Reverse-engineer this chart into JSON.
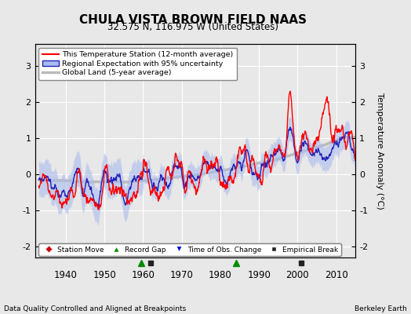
{
  "title": "CHULA VISTA BROWN FIELD NAAS",
  "subtitle": "32.575 N, 116.975 W (United States)",
  "ylabel": "Temperature Anomaly (°C)",
  "footer_left": "Data Quality Controlled and Aligned at Breakpoints",
  "footer_right": "Berkeley Earth",
  "xmin": 1932,
  "xmax": 2015,
  "ymin": -2.3,
  "ymax": 3.6,
  "yticks": [
    -2,
    -1,
    0,
    1,
    2,
    3
  ],
  "xticks": [
    1940,
    1950,
    1960,
    1970,
    1980,
    1990,
    2000,
    2010
  ],
  "station_color": "#FF0000",
  "regional_color": "#2222BB",
  "uncertainty_color": "#AABBEE",
  "global_color": "#BBBBBB",
  "legend_labels": [
    "This Temperature Station (12-month average)",
    "Regional Expectation with 95% uncertainty",
    "Global Land (5-year average)"
  ],
  "marker_labels": [
    "Station Move",
    "Record Gap",
    "Time of Obs. Change",
    "Empirical Break"
  ],
  "marker_colors": [
    "#CC0000",
    "#008800",
    "#0000CC",
    "#222222"
  ],
  "marker_shapes": [
    "D",
    "^",
    "v",
    "s"
  ],
  "record_gaps": [
    1959.5,
    1984.0
  ],
  "empirical_breaks": [
    1962.0,
    2001.0
  ],
  "bg_color": "#E8E8E8",
  "grid_color": "#FFFFFF"
}
